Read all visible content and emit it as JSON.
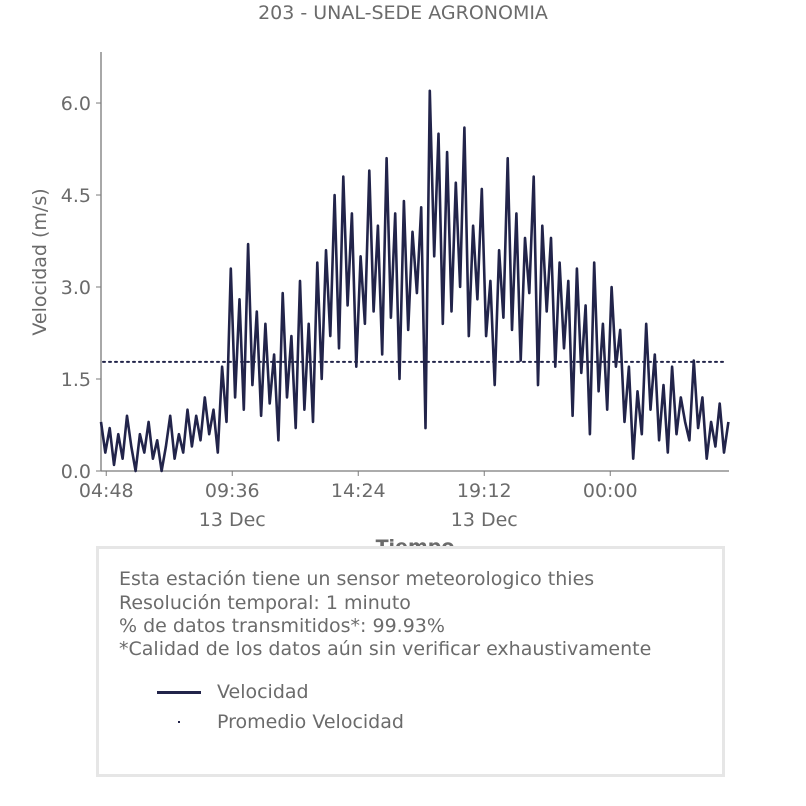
{
  "chart_data": {
    "type": "line",
    "title": "203 - UNAL-SEDE AGRONOMIA",
    "xlabel": "Tiempo",
    "ylabel": "Velocidad (m/s)",
    "ylim": [
      0,
      6.8
    ],
    "yticks": [
      "0.0",
      "1.5",
      "3.0",
      "4.5",
      "6.0"
    ],
    "ytick_values": [
      0,
      1.5,
      3.0,
      4.5,
      6.0
    ],
    "xticks": [
      {
        "hours": 0.2,
        "time": "04:48",
        "date": ""
      },
      {
        "hours": 5.0,
        "time": "09:36",
        "date": "13 Dec"
      },
      {
        "hours": 9.8,
        "time": "14:24",
        "date": ""
      },
      {
        "hours": 14.6,
        "time": "19:12",
        "date": "13 Dec"
      },
      {
        "hours": 19.4,
        "time": "00:00",
        "date": ""
      }
    ],
    "x_range_hours": [
      0,
      23.9
    ],
    "x_start_time": "04:36",
    "sample_interval_minutes": 10,
    "series": [
      {
        "name": "Velocidad",
        "color": "#22244a",
        "values": [
          0.8,
          0.3,
          0.7,
          0.1,
          0.6,
          0.2,
          0.9,
          0.4,
          0.0,
          0.6,
          0.3,
          0.8,
          0.2,
          0.5,
          0.0,
          0.4,
          0.9,
          0.2,
          0.6,
          0.3,
          1.0,
          0.4,
          0.9,
          0.5,
          1.2,
          0.6,
          1.0,
          0.3,
          1.7,
          0.8,
          3.3,
          1.2,
          2.8,
          1.0,
          3.7,
          1.4,
          2.6,
          0.9,
          2.4,
          1.1,
          1.9,
          0.5,
          2.9,
          1.2,
          2.2,
          0.7,
          3.1,
          1.0,
          2.4,
          0.8,
          3.4,
          1.5,
          3.6,
          2.2,
          4.5,
          2.0,
          4.8,
          2.7,
          4.2,
          1.7,
          3.5,
          2.4,
          4.9,
          2.6,
          4.0,
          1.9,
          5.1,
          2.5,
          4.2,
          1.5,
          4.4,
          2.3,
          3.9,
          2.9,
          4.3,
          0.7,
          6.2,
          3.5,
          5.5,
          2.4,
          5.2,
          2.6,
          4.7,
          3.0,
          5.6,
          2.2,
          4.0,
          2.8,
          4.6,
          2.2,
          3.1,
          1.4,
          3.6,
          2.5,
          5.1,
          2.3,
          4.2,
          1.8,
          3.8,
          2.9,
          4.8,
          1.4,
          4.0,
          2.6,
          3.8,
          1.7,
          3.4,
          2.0,
          3.1,
          0.9,
          3.3,
          1.6,
          2.7,
          0.6,
          3.4,
          1.3,
          2.4,
          1.0,
          3.0,
          1.7,
          2.3,
          0.8,
          1.7,
          0.2,
          1.3,
          0.6,
          2.4,
          1.0,
          1.9,
          0.5,
          1.4,
          0.3,
          1.7,
          0.6,
          1.2,
          0.8,
          0.5,
          1.8,
          0.7,
          1.2,
          0.2,
          0.8,
          0.4,
          1.1,
          0.3,
          0.8
        ]
      },
      {
        "name": "Promedio Velocidad",
        "color": "#22244a",
        "value": 1.78
      }
    ],
    "grid": false,
    "legend_position": "bottom-box"
  },
  "info": {
    "lines": [
      "Esta estación tiene un sensor meteorologico thies",
      "Resolución temporal: 1 minuto",
      "% de datos transmitidos*: 99.93%",
      "*Calidad de los datos aún sin verificar exhaustivamente"
    ],
    "legend": [
      {
        "label": "Velocidad",
        "marker": "line"
      },
      {
        "label": "Promedio Velocidad",
        "marker": "dot"
      }
    ]
  }
}
